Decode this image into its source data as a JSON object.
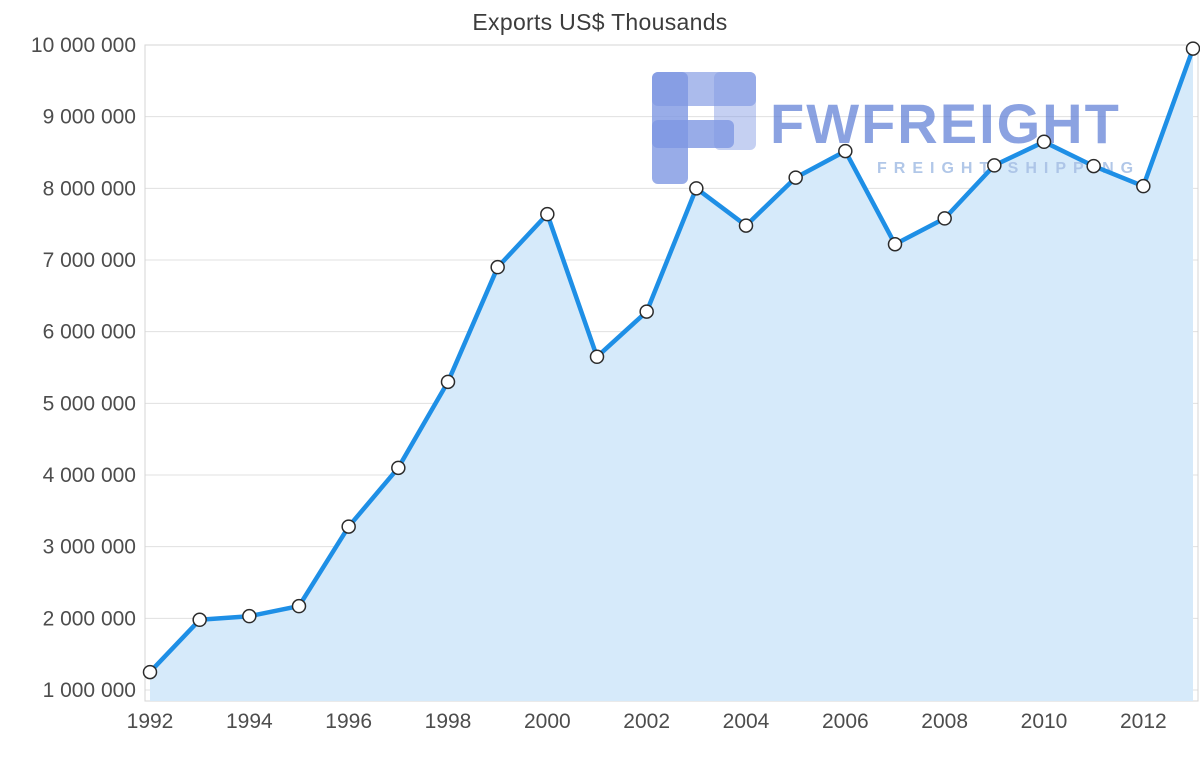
{
  "chart_data": {
    "type": "area",
    "title": "Exports US$ Thousands",
    "xlabel": "",
    "ylabel": "",
    "x": [
      1992,
      1993,
      1994,
      1995,
      1996,
      1997,
      1998,
      1999,
      2000,
      2001,
      2002,
      2003,
      2004,
      2005,
      2006,
      2007,
      2008,
      2009,
      2010,
      2011,
      2012,
      2013
    ],
    "values": [
      1250000,
      1980000,
      2030000,
      2170000,
      3280000,
      4100000,
      5300000,
      6900000,
      7640000,
      5650000,
      6280000,
      8000000,
      7480000,
      8150000,
      8520000,
      7220000,
      7580000,
      8320000,
      8650000,
      8310000,
      8030000,
      9950000
    ],
    "x_tick_labels": [
      "1992",
      "1994",
      "1996",
      "1998",
      "2000",
      "2002",
      "2004",
      "2006",
      "2008",
      "2010",
      "2012"
    ],
    "y_ticks": [
      1000000,
      2000000,
      3000000,
      4000000,
      5000000,
      6000000,
      7000000,
      8000000,
      9000000,
      10000000
    ],
    "y_tick_labels": [
      "1 000 000",
      "2 000 000",
      "3 000 000",
      "4 000 000",
      "5 000 000",
      "6 000 000",
      "7 000 000",
      "8 000 000",
      "9 000 000",
      "10 000 000"
    ],
    "ylim": [
      1000000,
      10000000
    ],
    "xlim": [
      1992,
      2013
    ],
    "grid": "horizontal",
    "legend": "none"
  },
  "watermark": {
    "brand": "FWFREIGHT",
    "tagline": "FREIGHT SHIPPING",
    "logo_color": "#7e97e2",
    "brand_color": "#5f7fd6",
    "tagline_color": "#a9c1e6"
  },
  "colors": {
    "line": "#1E8FE6",
    "area": "#D6EAFA",
    "marker_fill": "#FFFFFF",
    "marker_stroke": "#2b2b2b",
    "grid": "#E0E0E0",
    "plot_border": "#D5D5D5",
    "axis_text": "#4D4D4D",
    "title_text": "#3C3C3C"
  }
}
